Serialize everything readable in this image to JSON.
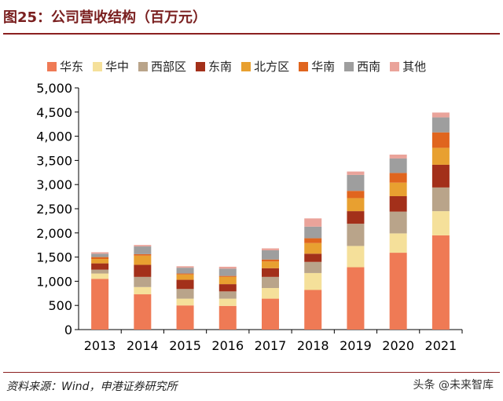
{
  "header": {
    "title": "图25：公司营收结构（百万元）"
  },
  "footer": {
    "source": "资料来源：Wind，申港证券研究所",
    "watermark": "头条 @未来智库"
  },
  "chart_data": {
    "type": "bar",
    "stacked": true,
    "categories": [
      "2013",
      "2014",
      "2015",
      "2016",
      "2017",
      "2018",
      "2019",
      "2020",
      "2021"
    ],
    "ylim": [
      0,
      5000
    ],
    "yticks": [
      "0",
      "500",
      "1,000",
      "1,500",
      "2,000",
      "2,500",
      "3,000",
      "3,500",
      "4,000",
      "4,500",
      "5,000"
    ],
    "ytick_values": [
      0,
      500,
      1000,
      1500,
      2000,
      2500,
      3000,
      3500,
      4000,
      4500,
      5000
    ],
    "legend_position": "top",
    "series": [
      {
        "name": "华东",
        "color": "#ef7a55",
        "values": [
          1050,
          730,
          500,
          490,
          640,
          820,
          1290,
          1590,
          1950
        ]
      },
      {
        "name": "华中",
        "color": "#f5e09a",
        "values": [
          110,
          150,
          140,
          150,
          220,
          350,
          440,
          400,
          500
        ]
      },
      {
        "name": "西部区",
        "color": "#b9a48a",
        "values": [
          80,
          210,
          200,
          150,
          230,
          230,
          460,
          450,
          490
        ]
      },
      {
        "name": "东南",
        "color": "#a3301a",
        "values": [
          130,
          250,
          190,
          150,
          180,
          170,
          260,
          320,
          470
        ]
      },
      {
        "name": "北方区",
        "color": "#e8a030",
        "values": [
          90,
          190,
          110,
          150,
          140,
          220,
          270,
          280,
          350
        ]
      },
      {
        "name": "华南",
        "color": "#e0651e",
        "values": [
          40,
          30,
          20,
          20,
          40,
          100,
          150,
          200,
          320
        ]
      },
      {
        "name": "西南",
        "color": "#9e9e9e",
        "values": [
          70,
          160,
          120,
          150,
          190,
          240,
          330,
          300,
          310
        ]
      },
      {
        "name": "其他",
        "color": "#eaa39a",
        "values": [
          30,
          30,
          30,
          40,
          40,
          170,
          70,
          80,
          100
        ]
      }
    ]
  }
}
